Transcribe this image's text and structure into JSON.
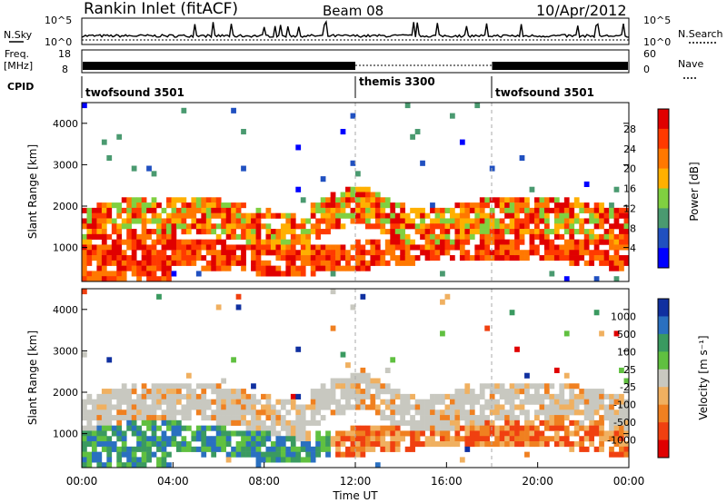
{
  "header": {
    "station": "Rankin Inlet (fitACF)",
    "beam": "Beam 08",
    "date": "10/Apr/2012"
  },
  "status_panels": {
    "nsky_label": "N.Sky",
    "nsearch_label": "N.Search",
    "nsky_ticks": [
      "10^5",
      "10^0"
    ],
    "nsearch_ticks": [
      "10^5",
      "10^0"
    ],
    "freq_label": "Freq.",
    "freq_unit": "[MHz]",
    "freq_ticks": [
      "18",
      "8"
    ],
    "nave_label": "Nave",
    "nave_ticks": [
      "60",
      "0"
    ],
    "cpid_label": "CPID",
    "cpid_segments": [
      {
        "label": "twofsound 3501",
        "start_hour": 0
      },
      {
        "label": "themis 3300",
        "start_hour": 12
      },
      {
        "label": "twofsound 3501",
        "start_hour": 18
      }
    ]
  },
  "chart_data": [
    {
      "type": "heatmap",
      "name": "power",
      "ylabel": "Slant Range [km]",
      "ylim": [
        180,
        4500
      ],
      "yticks": [
        "4000",
        "3000",
        "2000",
        "1000"
      ],
      "xlim_hours": [
        0,
        24
      ],
      "colorbar_label": "Power [dB]",
      "colorbar_ticks": [
        "28",
        "24",
        "20",
        "16",
        "12",
        "8",
        "4"
      ],
      "colorbar_colors": [
        "#e00000",
        "#ff3a00",
        "#ff7800",
        "#ffb000",
        "#80d040",
        "#4a9a70",
        "#2050c0",
        "#0000ff"
      ]
    },
    {
      "type": "heatmap",
      "name": "velocity",
      "ylabel": "Slant Range [km]",
      "ylim": [
        180,
        4500
      ],
      "yticks": [
        "4000",
        "3000",
        "2000",
        "1000"
      ],
      "xlim_hours": [
        0,
        24
      ],
      "xlabel": "Time UT",
      "xticks": [
        "00:00",
        "04:00",
        "08:00",
        "12:00",
        "16:00",
        "20:00",
        "00:00"
      ],
      "colorbar_label": "Velocity [m s⁻¹]",
      "colorbar_ticks": [
        "1000",
        "500",
        "100",
        "25",
        "-25",
        "-100",
        "-500",
        "-1000"
      ],
      "colorbar_colors": [
        "#1030a0",
        "#2a70c0",
        "#3a9a60",
        "#60c040",
        "#c8c8c0",
        "#f0b060",
        "#f08020",
        "#f04010",
        "#e00000"
      ]
    }
  ]
}
